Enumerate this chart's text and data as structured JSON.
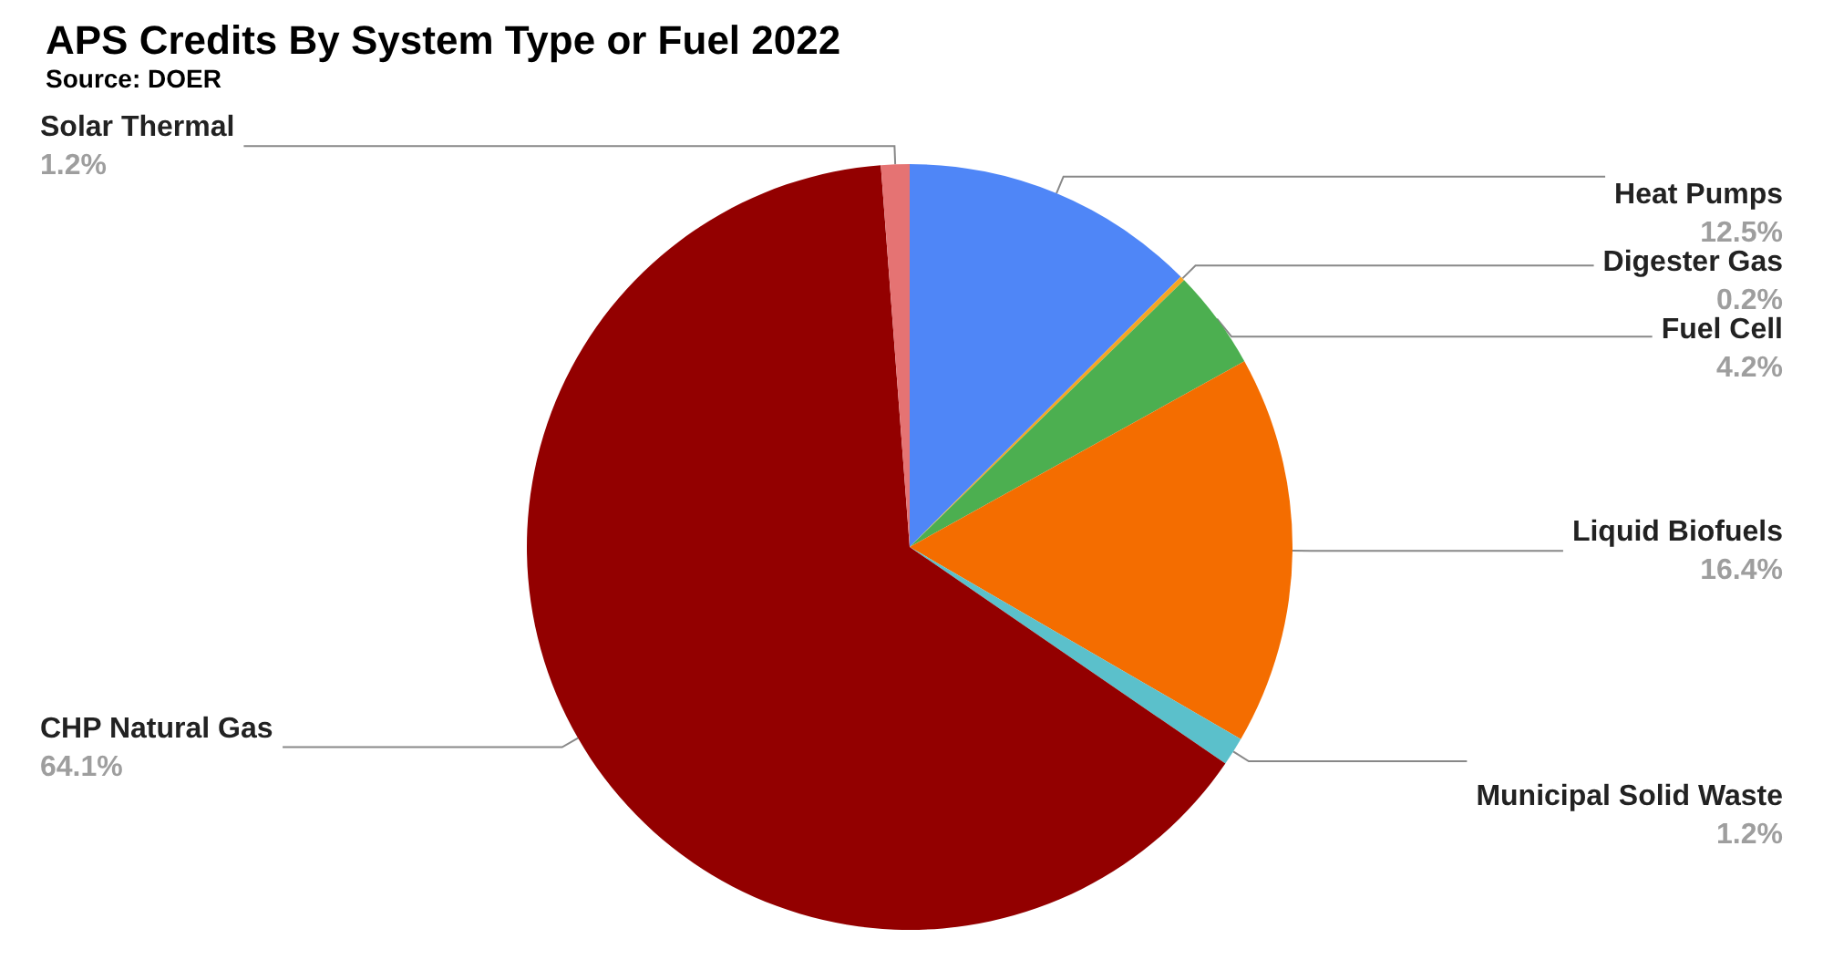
{
  "chart_data": {
    "type": "pie",
    "title": "APS Credits By System Type or Fuel 2022",
    "subtitle": "Source: DOER",
    "categories": [
      "Heat Pumps",
      "Digester Gas",
      "Fuel Cell",
      "Liquid Biofuels",
      "Municipal Solid Waste",
      "CHP Natural Gas",
      "Solar Thermal"
    ],
    "values": [
      12.5,
      0.2,
      4.2,
      16.4,
      1.2,
      64.1,
      1.2
    ],
    "value_labels": [
      "12.5%",
      "0.2%",
      "4.2%",
      "16.4%",
      "1.2%",
      "64.1%",
      "1.2%"
    ],
    "colors": [
      "#4f86f7",
      "#f5a623",
      "#4caf50",
      "#f46d00",
      "#5bc0cb",
      "#930000",
      "#e57373"
    ],
    "legend": false
  }
}
